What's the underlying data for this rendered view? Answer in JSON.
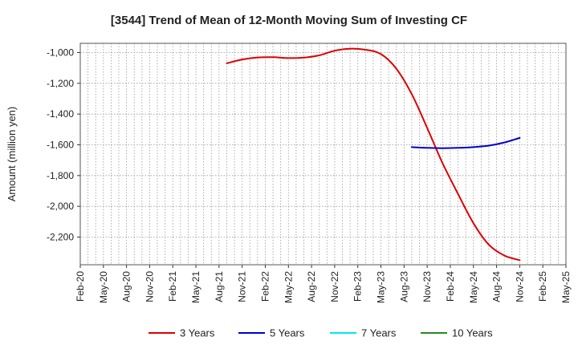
{
  "chart_data": {
    "type": "line",
    "title": "[3544]  Trend of Mean of 12-Month Moving Sum of Investing CF",
    "ylabel": "Amount (million yen)",
    "xlabel": "",
    "x_ticks": [
      "Feb-20",
      "May-20",
      "Aug-20",
      "Nov-20",
      "Feb-21",
      "May-21",
      "Aug-21",
      "Nov-21",
      "Feb-22",
      "May-22",
      "Aug-22",
      "Nov-22",
      "Feb-23",
      "May-23",
      "Aug-23",
      "Nov-23",
      "Feb-24",
      "May-24",
      "Aug-24",
      "Nov-24",
      "Feb-25",
      "May-25"
    ],
    "y_ticks": [
      -1000,
      -1200,
      -1400,
      -1600,
      -1800,
      -2000,
      -2200
    ],
    "y_tick_labels": [
      "-1,000",
      "-1,200",
      "-1,400",
      "-1,600",
      "-1,800",
      "-2,000",
      "-2,200"
    ],
    "ylim": [
      -2380,
      -940
    ],
    "grid": true,
    "legend_position": "bottom",
    "series": [
      {
        "name": "3 Years",
        "color": "#dd0000",
        "x": [
          "Sep-21",
          "Nov-21",
          "Jan-22",
          "Mar-22",
          "May-22",
          "Jul-22",
          "Sep-22",
          "Nov-22",
          "Jan-23",
          "Mar-23",
          "May-23",
          "Jul-23",
          "Sep-23",
          "Nov-23",
          "Jan-24",
          "Mar-24",
          "May-24",
          "Jul-24",
          "Sep-24",
          "Nov-24"
        ],
        "values": [
          -1070,
          -1045,
          -1032,
          -1030,
          -1036,
          -1033,
          -1018,
          -988,
          -975,
          -982,
          -1010,
          -1105,
          -1270,
          -1490,
          -1720,
          -1920,
          -2110,
          -2250,
          -2320,
          -2350
        ]
      },
      {
        "name": "5 Years",
        "color": "#0000cc",
        "x": [
          "Sep-23",
          "Nov-23",
          "Jan-24",
          "Mar-24",
          "May-24",
          "Jul-24",
          "Sep-24",
          "Nov-24"
        ],
        "values": [
          -1615,
          -1620,
          -1622,
          -1620,
          -1615,
          -1605,
          -1585,
          -1555
        ]
      },
      {
        "name": "7 Years",
        "color": "#00e5ee",
        "x": [],
        "values": []
      },
      {
        "name": "10 Years",
        "color": "#228b22",
        "x": [],
        "values": []
      }
    ]
  }
}
